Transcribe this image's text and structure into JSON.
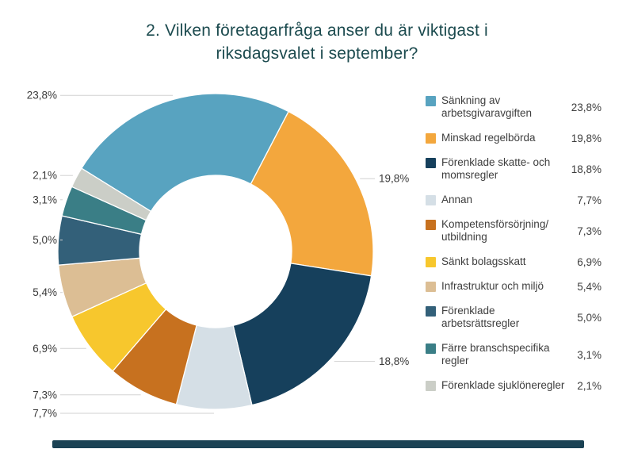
{
  "title": {
    "line1": "2. Vilken företagarfråga anser du är viktigast i",
    "line2": "riksdagsvalet i september?"
  },
  "colors": {
    "title_text": "#1C4B4F",
    "label_text": "#3A3A3A",
    "leader_line": "#D2D2D2",
    "footer_bar": "#1B4254"
  },
  "chart_data": {
    "type": "pie",
    "subtype": "donut",
    "title": "2. Vilken företagarfråga anser du är viktigast i riksdagsvalet i september?",
    "unit": "%",
    "decimal_separator": ",",
    "legend_position": "right",
    "start_angle_deg": -58.2,
    "inner_radius_ratio": 0.48,
    "categories": [
      "Sänkning av arbetsgivaravgiften",
      "Minskad regelbörda",
      "Förenklade skatte- och momsregler",
      "Annan",
      "Kompetensförsörjning/utbildning",
      "Sänkt bolagsskatt",
      "Infrastruktur och miljö",
      "Förenklade arbetsrättsregler",
      "Färre branschspecifika regler",
      "Förenklade sjuklöneregler"
    ],
    "values": [
      23.8,
      19.8,
      18.8,
      7.7,
      7.3,
      6.9,
      5.4,
      5.0,
      3.1,
      2.1
    ],
    "series": [
      {
        "label": "Sänkning av arbetsgivaravgiften",
        "wrap": [
          "Sänkning av",
          "arbetsgivaravgiften"
        ],
        "value": 23.8,
        "display": "23,8%",
        "color": "#58A3C0"
      },
      {
        "label": "Minskad regelbörda",
        "wrap": [
          "Minskad regelbörda"
        ],
        "value": 19.8,
        "display": "19,8%",
        "color": "#F3A73D"
      },
      {
        "label": "Förenklade skatte- och momsregler",
        "wrap": [
          "Förenklade skatte- och",
          "momsregler"
        ],
        "value": 18.8,
        "display": "18,8%",
        "color": "#16405C"
      },
      {
        "label": "Annan",
        "wrap": [
          "Annan"
        ],
        "value": 7.7,
        "display": "7,7%",
        "color": "#D5DFE6"
      },
      {
        "label": "Kompetensförsörjning/utbildning",
        "wrap": [
          "Kompetensförsörjning/",
          "utbildning"
        ],
        "value": 7.3,
        "display": "7,3%",
        "color": "#C7711F"
      },
      {
        "label": "Sänkt bolagsskatt",
        "wrap": [
          "Sänkt bolagsskatt"
        ],
        "value": 6.9,
        "display": "6,9%",
        "color": "#F7C72D"
      },
      {
        "label": "Infrastruktur och miljö",
        "wrap": [
          "Infrastruktur och miljö"
        ],
        "value": 5.4,
        "display": "5,4%",
        "color": "#DCBE94"
      },
      {
        "label": "Förenklade arbetsrättsregler",
        "wrap": [
          "Förenklade",
          "arbetsrättsregler"
        ],
        "value": 5.0,
        "display": "5,0%",
        "color": "#336079"
      },
      {
        "label": "Färre branschspecifika regler",
        "wrap": [
          "Färre branschspecifika",
          "regler"
        ],
        "value": 3.1,
        "display": "3,1%",
        "color": "#3A7E86"
      },
      {
        "label": "Förenklade sjuklöneregler",
        "wrap": [
          "Förenklade sjuklöneregler"
        ],
        "value": 2.1,
        "display": "2,1%",
        "color": "#CBCEC7"
      }
    ]
  }
}
